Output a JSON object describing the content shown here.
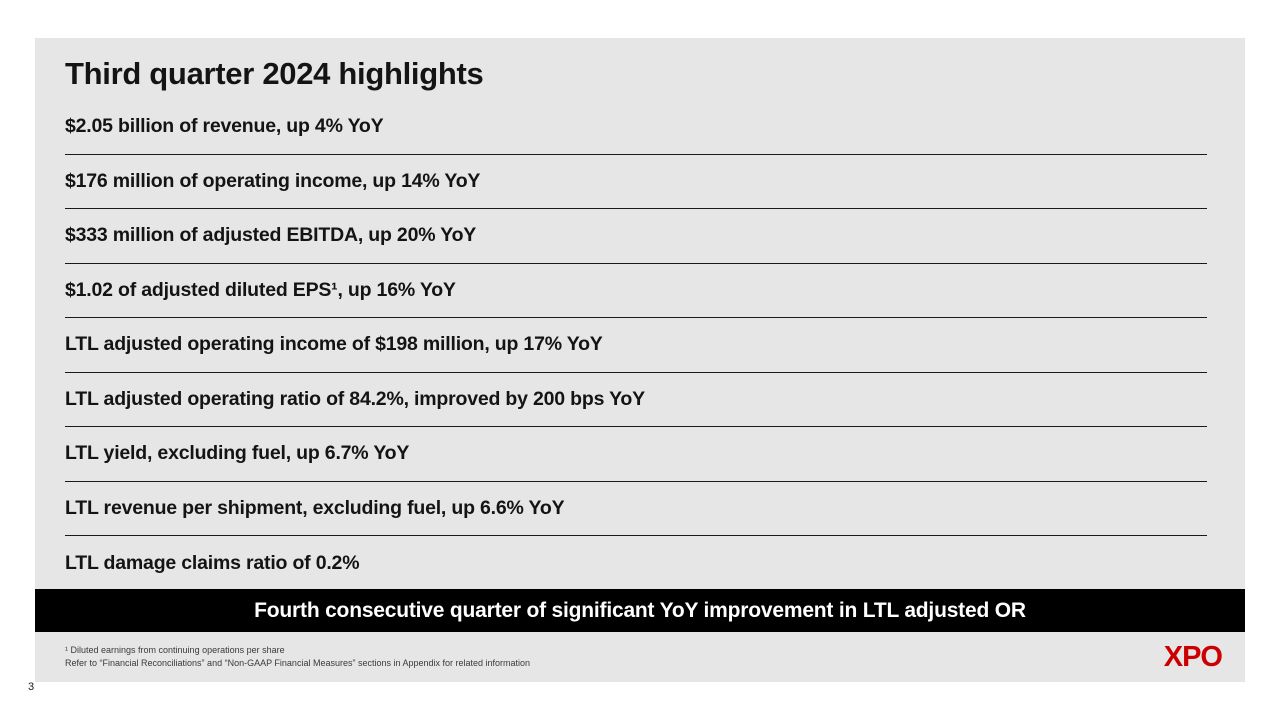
{
  "slide": {
    "title": "Third quarter 2024 highlights",
    "highlights": [
      "$2.05 billion of revenue, up 4% YoY",
      "$176 million of operating income, up 14% YoY",
      "$333 million of adjusted EBITDA, up 20% YoY",
      "$1.02 of adjusted diluted EPS¹, up 16% YoY",
      "LTL adjusted operating income of $198 million, up 17% YoY",
      "LTL adjusted operating ratio of 84.2%, improved by 200 bps YoY",
      "LTL yield, excluding fuel, up 6.7% YoY",
      "LTL revenue per shipment, excluding fuel, up 6.6% YoY",
      "LTL damage claims ratio of 0.2%"
    ],
    "banner_text": "Fourth consecutive quarter of significant YoY improvement in LTL adjusted OR",
    "footnotes": [
      "¹ Diluted earnings from continuing operations per share",
      "Refer to “Financial Reconciliations” and “Non-GAAP Financial Measures” sections in Appendix for related information"
    ],
    "logo_text": "XPO",
    "page_number": "3",
    "colors": {
      "slide_background": "#e7e6e6",
      "banner_background": "#000000",
      "banner_text": "#ffffff",
      "body_text": "#141414",
      "logo_red": "#cc0000"
    }
  }
}
